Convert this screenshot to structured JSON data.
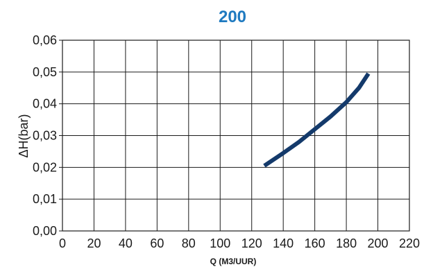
{
  "chart_data": {
    "type": "line",
    "title": "200",
    "xlabel": "Q (M3/UUR)",
    "ylabel": "ΔH(bar)",
    "xlim": [
      0,
      220
    ],
    "ylim": [
      0,
      0.06
    ],
    "x_ticks": [
      0,
      20,
      40,
      60,
      80,
      100,
      120,
      140,
      160,
      180,
      200,
      220
    ],
    "x_tick_labels": [
      "0",
      "20",
      "40",
      "60",
      "80",
      "100",
      "120",
      "140",
      "160",
      "180",
      "200",
      "220"
    ],
    "y_ticks": [
      0,
      0.01,
      0.02,
      0.03,
      0.04,
      0.05,
      0.06
    ],
    "y_tick_labels": [
      "0,00",
      "0,01",
      "0,02",
      "0,03",
      "0,04",
      "0,05",
      "0,06"
    ],
    "grid": true,
    "series": [
      {
        "values": [
          {
            "x": 128,
            "y": 0.0205
          },
          {
            "x": 140,
            "y": 0.0245
          },
          {
            "x": 150,
            "y": 0.028
          },
          {
            "x": 160,
            "y": 0.032
          },
          {
            "x": 170,
            "y": 0.036
          },
          {
            "x": 180,
            "y": 0.0405
          },
          {
            "x": 188,
            "y": 0.045
          },
          {
            "x": 194,
            "y": 0.0495
          }
        ]
      }
    ],
    "colors": {
      "title": "#1f7ac0",
      "series": "#143a6b",
      "grid": "#1a1a1a",
      "axis": "#1a1a1a"
    }
  }
}
